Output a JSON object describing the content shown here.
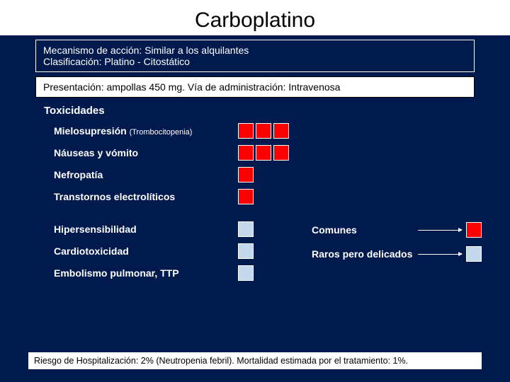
{
  "title": "Carboplatino",
  "mechanism_line1": "Mecanismo de acción: Similar a los alquilantes",
  "mechanism_line2": "Clasificación:  Platino - Citostático",
  "presentation": "Presentación: ampollas  450 mg.  Vía de  administración: Intravenosa",
  "toxicities_heading": "Toxicidades",
  "tox": [
    {
      "label": "Mielosupresión ",
      "sub": "(Trombocitopenia)",
      "count": 3,
      "color": "red"
    },
    {
      "label": "Náuseas y vómito",
      "sub": "",
      "count": 3,
      "color": "red"
    },
    {
      "label": "Nefropatía",
      "sub": "",
      "count": 1,
      "color": "red"
    },
    {
      "label": "Transtornos electrolíticos",
      "sub": "",
      "count": 1,
      "color": "red"
    }
  ],
  "tox2": [
    {
      "label": "Hipersensibilidad",
      "sub": "",
      "count": 1,
      "color": "blue"
    },
    {
      "label": "Cardiotoxicidad",
      "sub": "",
      "count": 1,
      "color": "blue"
    },
    {
      "label": "Embolismo pulmonar, TTP",
      "sub": "",
      "count": 1,
      "color": "blue"
    }
  ],
  "legend": {
    "common": "Comunes",
    "rare": "Raros pero delicados"
  },
  "footer": "Riesgo de Hospitalización: 2% (Neutropenia febril). Mortalidad estimada por el tratamiento: 1%.",
  "colors": {
    "background": "#001a4d",
    "red": "#ff0000",
    "blue": "#c4d8ec",
    "white": "#ffffff"
  }
}
